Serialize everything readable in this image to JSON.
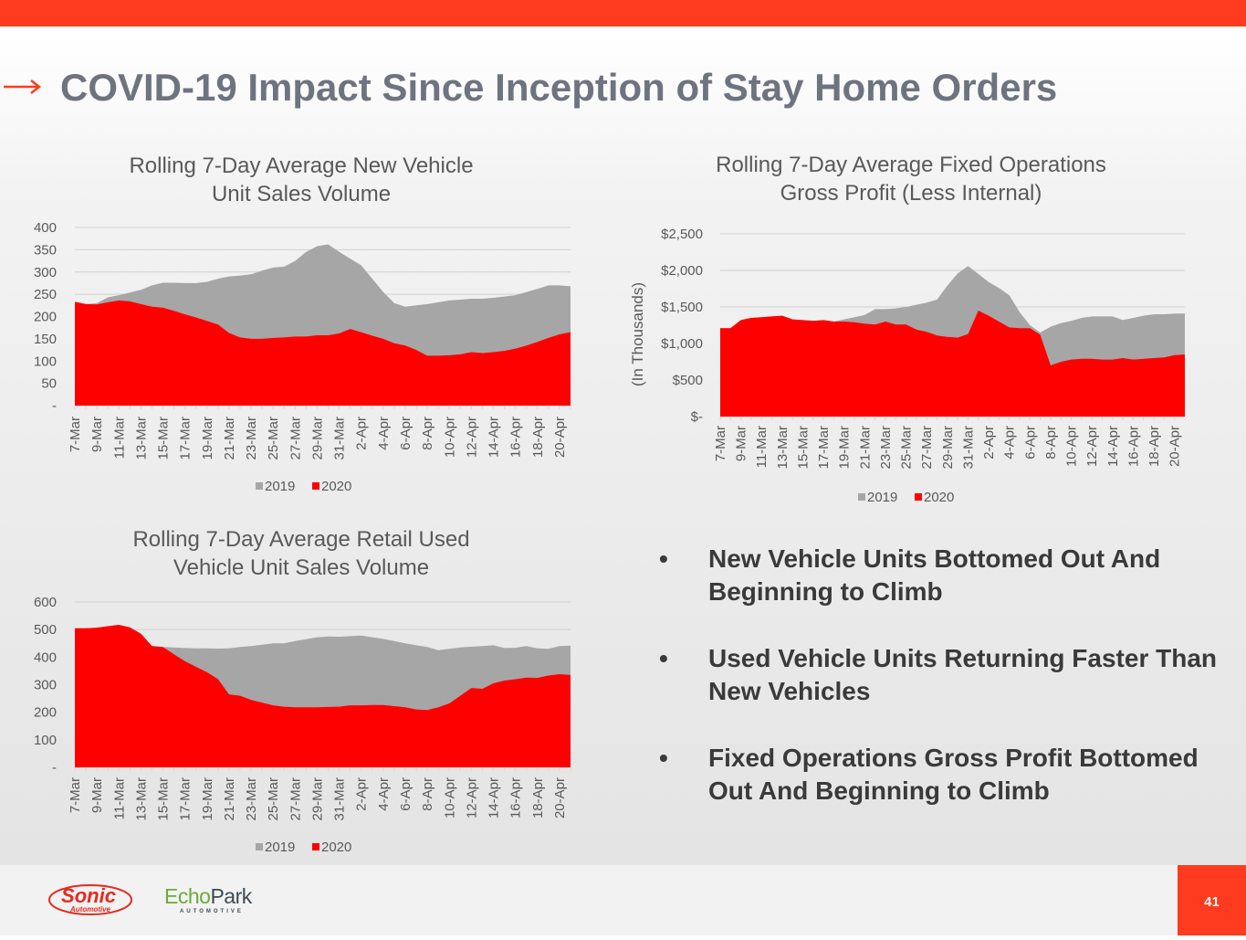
{
  "page": {
    "title": "COVID-19 Impact Since Inception of Stay Home Orders",
    "page_number": "41",
    "accent_color": "#ff3b1f"
  },
  "bullets": [
    {
      "symbol": "•",
      "text": "New Vehicle Units Bottomed Out And Beginning to Climb"
    },
    {
      "symbol": "•",
      "text": "Used Vehicle Units Returning Faster Than New Vehicles"
    },
    {
      "symbol": "•",
      "text": "Fixed Operations Gross Profit Bottomed Out And Beginning to Climb"
    }
  ],
  "logos": {
    "sonic": {
      "main": "Sonic",
      "sub": "Automotive"
    },
    "echopark": {
      "part1": "Echo",
      "part2": "Park",
      "sub": "AUTOMOTIVE"
    }
  },
  "chart_data": [
    {
      "type": "area",
      "title_lines": [
        "Rolling 7-Day Average New Vehicle",
        "Unit Sales Volume"
      ],
      "xlabel": "",
      "ylabel": "",
      "ylim": [
        0,
        400
      ],
      "yticks": [
        0,
        50,
        100,
        150,
        200,
        250,
        300,
        350,
        400
      ],
      "ytick_labels": [
        "-",
        "50",
        "100",
        "150",
        "200",
        "250",
        "300",
        "350",
        "400"
      ],
      "grid": true,
      "legend": "bottom",
      "x_tick_labels": [
        "7-Mar",
        "9-Mar",
        "11-Mar",
        "13-Mar",
        "15-Mar",
        "17-Mar",
        "19-Mar",
        "21-Mar",
        "23-Mar",
        "25-Mar",
        "27-Mar",
        "29-Mar",
        "31-Mar",
        "2-Apr",
        "4-Apr",
        "6-Apr",
        "8-Apr",
        "10-Apr",
        "12-Apr",
        "14-Apr",
        "16-Apr",
        "18-Apr",
        "20-Apr"
      ],
      "x_start": "7-Mar",
      "x_end": "21-Apr",
      "series": [
        {
          "name": "2019",
          "color": "#a6a6a6",
          "values": [
            233,
            228,
            230,
            243,
            248,
            254,
            260,
            270,
            276,
            276,
            275,
            275,
            278,
            285,
            290,
            292,
            295,
            303,
            310,
            312,
            325,
            345,
            358,
            362,
            345,
            330,
            315,
            285,
            255,
            230,
            222,
            225,
            228,
            232,
            236,
            238,
            240,
            240,
            242,
            245,
            248,
            255,
            262,
            270,
            270,
            268
          ]
        },
        {
          "name": "2020",
          "color": "#ff0000",
          "values": [
            233,
            228,
            227,
            232,
            236,
            234,
            228,
            222,
            220,
            213,
            205,
            198,
            190,
            182,
            163,
            153,
            150,
            150,
            152,
            153,
            155,
            155,
            158,
            158,
            162,
            172,
            165,
            157,
            150,
            140,
            135,
            125,
            112,
            112,
            113,
            115,
            120,
            118,
            120,
            123,
            128,
            135,
            143,
            152,
            160,
            165
          ]
        }
      ]
    },
    {
      "type": "area",
      "title_lines": [
        "Rolling 7-Day Average Fixed Operations",
        "Gross Profit (Less Internal)"
      ],
      "xlabel": "",
      "ylabel": "(In Thousands)",
      "ylim": [
        0,
        2500
      ],
      "yticks": [
        0,
        500,
        1000,
        1500,
        2000,
        2500
      ],
      "ytick_labels": [
        "$-",
        "$500",
        "$1,000",
        "$1,500",
        "$2,000",
        "$2,500"
      ],
      "grid": true,
      "legend": "bottom",
      "x_tick_labels": [
        "7-Mar",
        "9-Mar",
        "11-Mar",
        "13-Mar",
        "15-Mar",
        "17-Mar",
        "19-Mar",
        "21-Mar",
        "23-Mar",
        "25-Mar",
        "27-Mar",
        "29-Mar",
        "31-Mar",
        "2-Apr",
        "4-Apr",
        "6-Apr",
        "8-Apr",
        "10-Apr",
        "12-Apr",
        "14-Apr",
        "16-Apr",
        "18-Apr",
        "20-Apr"
      ],
      "x_start": "7-Mar",
      "x_end": "21-Apr",
      "series": [
        {
          "name": "2019",
          "color": "#a6a6a6",
          "values": [
            1210,
            1210,
            1320,
            1350,
            1360,
            1370,
            1380,
            1330,
            1320,
            1310,
            1320,
            1300,
            1330,
            1360,
            1390,
            1470,
            1470,
            1480,
            1500,
            1530,
            1560,
            1600,
            1790,
            1960,
            2060,
            1950,
            1840,
            1760,
            1660,
            1430,
            1250,
            1150,
            1230,
            1280,
            1310,
            1350,
            1370,
            1370,
            1370,
            1320,
            1350,
            1380,
            1400,
            1400,
            1410,
            1410
          ]
        },
        {
          "name": "2020",
          "color": "#ff0000",
          "values": [
            1210,
            1210,
            1320,
            1350,
            1360,
            1370,
            1380,
            1330,
            1320,
            1310,
            1320,
            1300,
            1300,
            1290,
            1270,
            1260,
            1300,
            1260,
            1260,
            1190,
            1160,
            1110,
            1090,
            1080,
            1130,
            1450,
            1380,
            1300,
            1220,
            1210,
            1210,
            1120,
            700,
            750,
            780,
            790,
            790,
            780,
            780,
            800,
            780,
            790,
            800,
            810,
            840,
            850
          ]
        }
      ]
    },
    {
      "type": "area",
      "title_lines": [
        "Rolling 7-Day Average Retail Used",
        "Vehicle Unit Sales Volume"
      ],
      "xlabel": "",
      "ylabel": "",
      "ylim": [
        0,
        600
      ],
      "yticks": [
        0,
        100,
        200,
        300,
        400,
        500,
        600
      ],
      "ytick_labels": [
        "-",
        "100",
        "200",
        "300",
        "400",
        "500",
        "600"
      ],
      "grid": true,
      "legend": "bottom",
      "x_tick_labels": [
        "7-Mar",
        "9-Mar",
        "11-Mar",
        "13-Mar",
        "15-Mar",
        "17-Mar",
        "19-Mar",
        "21-Mar",
        "23-Mar",
        "25-Mar",
        "27-Mar",
        "29-Mar",
        "31-Mar",
        "2-Apr",
        "4-Apr",
        "6-Apr",
        "8-Apr",
        "10-Apr",
        "12-Apr",
        "14-Apr",
        "16-Apr",
        "18-Apr",
        "20-Apr"
      ],
      "x_start": "7-Mar",
      "x_end": "21-Apr",
      "series": [
        {
          "name": "2019",
          "color": "#a6a6a6",
          "values": [
            505,
            505,
            507,
            512,
            517,
            508,
            485,
            440,
            437,
            435,
            433,
            432,
            432,
            431,
            432,
            437,
            440,
            445,
            450,
            450,
            458,
            465,
            472,
            475,
            474,
            476,
            478,
            472,
            466,
            458,
            450,
            443,
            437,
            425,
            430,
            435,
            438,
            440,
            443,
            433,
            434,
            440,
            432,
            430,
            440,
            442
          ]
        },
        {
          "name": "2020",
          "color": "#ff0000",
          "values": [
            505,
            505,
            507,
            512,
            517,
            508,
            485,
            440,
            437,
            410,
            385,
            365,
            345,
            320,
            265,
            260,
            245,
            235,
            225,
            220,
            218,
            218,
            218,
            219,
            220,
            225,
            225,
            226,
            226,
            222,
            218,
            210,
            208,
            218,
            232,
            260,
            288,
            285,
            305,
            315,
            320,
            326,
            325,
            333,
            338,
            335
          ]
        }
      ]
    }
  ]
}
